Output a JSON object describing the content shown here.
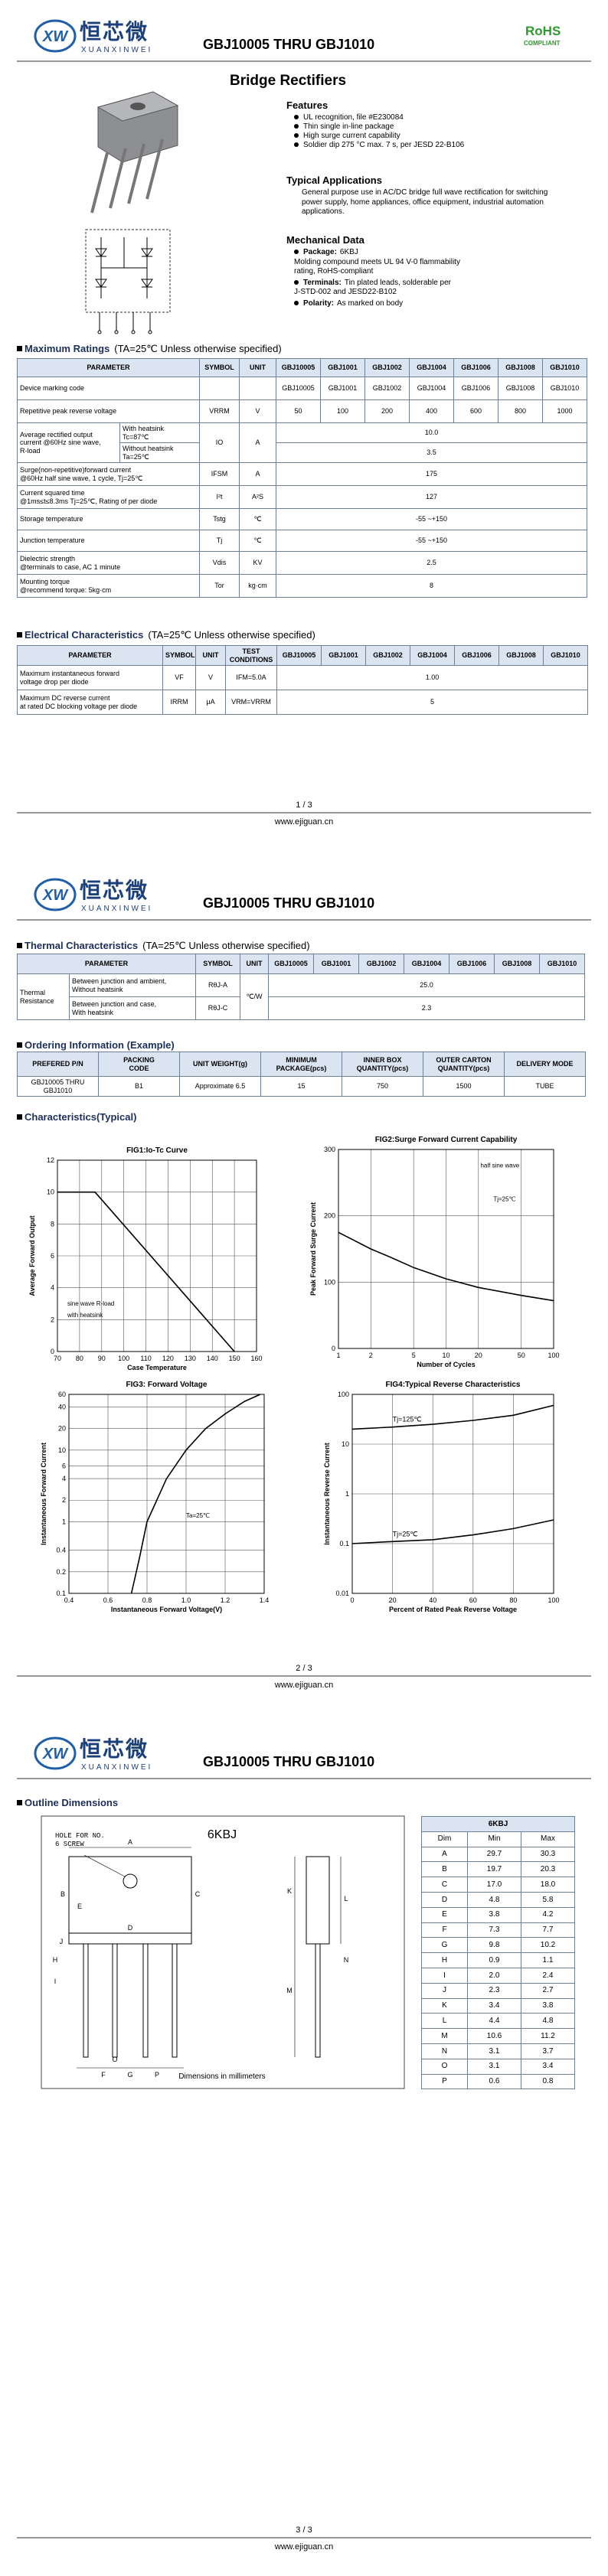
{
  "header": {
    "logo_mark": "XW",
    "brand": "恒芯微",
    "brand_en": "XUANXINWEI",
    "part_range": "GBJ10005 THRU GBJ1010",
    "rohs": "RoHS",
    "compliant": "COMPLIANT"
  },
  "product_title": "Bridge Rectifiers",
  "features": {
    "heading": "Features",
    "items": [
      "UL recognition, file #E230084",
      "Thin single in-line package",
      "High surge current capability",
      "Soldier dip 275 °C max. 7 s, per JESD 22-B106"
    ]
  },
  "applications": {
    "heading": "Typical Applications",
    "text": "General purpose use in AC/DC bridge full wave rectification for switching power supply, home appliances, office equipment, industrial automation applications."
  },
  "mechanical": {
    "heading": "Mechanical Data",
    "items": [
      {
        "label": "Package:",
        "text": "6KBJ\nMolding compound meets UL 94 V-0 flammability\nrating, RoHS-compliant"
      },
      {
        "label": "Terminals:",
        "text": "Tin plated leads, solderable per\nJ-STD-002 and JESD22-B102"
      },
      {
        "label": "Polarity:",
        "text": "As marked on body"
      }
    ]
  },
  "max_ratings": {
    "title": "Maximum Ratings",
    "condition": "(TA=25℃ Unless otherwise specified)",
    "header": [
      "PARAMETER",
      "SYMBOL",
      "UNIT",
      "GBJ10005",
      "GBJ1001",
      "GBJ1002",
      "GBJ1004",
      "GBJ1006",
      "GBJ1008",
      "GBJ1010"
    ],
    "rows": [
      {
        "parameter": "Device marking code",
        "values": [
          "GBJ10005",
          "GBJ1001",
          "GBJ1002",
          "GBJ1004",
          "GBJ1006",
          "GBJ1008",
          "GBJ1010"
        ]
      },
      {
        "parameter": "Repetitive peak reverse voltage",
        "symbol": "VRRM",
        "unit": "V",
        "values": [
          "50",
          "100",
          "200",
          "400",
          "600",
          "800",
          "1000"
        ]
      },
      {
        "parameter": "Average rectified output\ncurrent @60Hz sine wave,\nR-load",
        "conditions": [
          "With heatsink\nTc=87℃",
          "Without heatsink\nTa=25℃"
        ],
        "symbol": "IO",
        "unit": "A",
        "values": [
          "10.0",
          "3.5"
        ]
      },
      {
        "parameter": "Surge(non-repetitive)forward current\n@60Hz half sine wave, 1 cycle, Tj=25℃",
        "symbol": "IFSM",
        "unit": "A",
        "values": [
          "175"
        ]
      },
      {
        "parameter": "Current squared time\n@1ms≤t≤8.3ms Tj=25℃, Rating of per diode",
        "symbol": "I²t",
        "unit": "A²S",
        "values": [
          "127"
        ]
      },
      {
        "parameter": "Storage temperature",
        "symbol": "Tstg",
        "unit": "℃",
        "values": [
          "-55 ~+150"
        ]
      },
      {
        "parameter": "Junction temperature",
        "symbol": "Tj",
        "unit": "℃",
        "values": [
          "-55 ~+150"
        ]
      },
      {
        "parameter": "Dielectric strength\n@terminals to case, AC 1 minute",
        "symbol": "Vdis",
        "unit": "KV",
        "values": [
          "2.5"
        ]
      },
      {
        "parameter": "Mounting torque\n@recommend torque: 5kg·cm",
        "symbol": "Tor",
        "unit": "kg·cm",
        "values": [
          "8"
        ]
      }
    ]
  },
  "electrical": {
    "title": "Electrical Characteristics",
    "condition": "(TA=25℃ Unless otherwise specified)",
    "header": [
      "PARAMETER",
      "SYMBOL",
      "UNIT",
      "TEST CONDITIONS",
      "GBJ10005",
      "GBJ1001",
      "GBJ1002",
      "GBJ1004",
      "GBJ1006",
      "GBJ1008",
      "GBJ1010"
    ],
    "rows": [
      {
        "parameter": "Maximum instantaneous forward\nvoltage drop per diode",
        "symbol": "VF",
        "unit": "V",
        "test": "IFM=5.0A",
        "value": "1.00"
      },
      {
        "parameter": "Maximum DC reverse current\nat rated DC blocking voltage per diode",
        "symbol": "IRRM",
        "unit": "μA",
        "test": "VRM=VRRM",
        "value": "5"
      }
    ]
  },
  "thermal": {
    "title": "Thermal Characteristics",
    "condition": "(TA=25℃ Unless otherwise specified)",
    "header": [
      "PARAMETER",
      "SYMBOL",
      "UNIT",
      "GBJ10005",
      "GBJ1001",
      "GBJ1002",
      "GBJ1004",
      "GBJ1006",
      "GBJ1008",
      "GBJ1010"
    ],
    "parameter": "Thermal\nResistance",
    "unit": "℃/W",
    "rows": [
      {
        "condition": "Between junction and ambient,\nWithout heatsink",
        "symbol": "RθJ-A",
        "value": "25.0"
      },
      {
        "condition": "Between junction and case,\nWith heatsink",
        "symbol": "RθJ-C",
        "value": "2.3"
      }
    ]
  },
  "ordering": {
    "title": "Ordering Information (Example)",
    "header": [
      "PREFERED P/N",
      "PACKING\nCODE",
      "UNIT WEIGHT(g)",
      "MINIMUM\nPACKAGE(pcs)",
      "INNER BOX\nQUANTITY(pcs)",
      "OUTER CARTON\nQUANTITY(pcs)",
      "DELIVERY MODE"
    ],
    "row": [
      "GBJ10005 THRU GBJ1010",
      "B1",
      "Approximate 6.5",
      "15",
      "750",
      "1500",
      "TUBE"
    ]
  },
  "characteristics": {
    "title": "Characteristics(Typical)",
    "charts": [
      {
        "title": "FIG1:Io-Tc Curve",
        "xlabel": "Case Temperature",
        "ylabel": "Average Forward Output",
        "xlim": [
          70,
          160
        ],
        "ylim": [
          0,
          12
        ],
        "xticks": [
          70,
          80,
          90,
          100,
          110,
          120,
          130,
          140,
          150,
          160
        ],
        "yticks": [
          0,
          2,
          4,
          6,
          8,
          10,
          12
        ],
        "series": [
          {
            "color": "#000000",
            "x": [
              70,
              87,
              150
            ],
            "values": [
              10,
              10,
              0
            ]
          }
        ],
        "annotations": [
          "sine wave R-load",
          "with heatsink"
        ]
      },
      {
        "title": "FIG2:Surge Forward Current Capability",
        "xlabel": "Number of Cycles",
        "ylabel": "Peak Forward Surge Current",
        "xlog": true,
        "xlim": [
          1,
          100
        ],
        "ylim": [
          0,
          300
        ],
        "xticks": [
          1,
          2,
          5,
          10,
          20,
          50,
          100
        ],
        "yticks": [
          0,
          100,
          200,
          300
        ],
        "series": [
          {
            "color": "#000000",
            "x": [
              1,
              2,
              3,
              5,
              10,
              20,
              50,
              100
            ],
            "values": [
              175,
              150,
              138,
              122,
              105,
              92,
              80,
              72
            ]
          }
        ],
        "annotations": [
          "half sine wave",
          "Tj=25℃"
        ]
      },
      {
        "title": "FIG3: Forward Voltage",
        "xlabel": "Instantaneous Forward Voltage(V)",
        "ylabel": "Instantaneous Forward Current",
        "ylog": true,
        "xlim": [
          0.4,
          1.4
        ],
        "ylim": [
          0.1,
          60
        ],
        "xticks": [
          0.4,
          0.6,
          0.8,
          {
            "value": 1.0,
            "label": "1.0"
          },
          1.2,
          1.4
        ],
        "yticks": [
          0.1,
          0.2,
          0.4,
          1,
          2,
          4,
          6,
          10,
          20,
          40,
          60
        ],
        "series": [
          {
            "color": "#000000",
            "x": [
              0.72,
              0.76,
              0.8,
              0.9,
              1.0,
              1.1,
              1.2,
              1.3,
              1.38
            ],
            "values": [
              0.1,
              0.3,
              1,
              4,
              10,
              20,
              32,
              48,
              60
            ]
          }
        ],
        "annotations": [
          "Ta=25℃"
        ]
      },
      {
        "title": "FIG4:Typical Reverse Characteristics",
        "xlabel": "Percent of Rated Peak Reverse Voltage",
        "ylabel": "Instantaneous Reverse Current",
        "ylog": true,
        "xlim": [
          0,
          100
        ],
        "ylim": [
          0.01,
          100
        ],
        "xticks": [
          0,
          20,
          40,
          60,
          80,
          100
        ],
        "yticks": [
          0.01,
          0.1,
          1,
          10,
          100
        ],
        "series": [
          {
            "name": "Tj=125℃",
            "color": "#000000",
            "x": [
              0,
              20,
              40,
              60,
              80,
              100
            ],
            "values": [
              20,
              22,
              25,
              30,
              38,
              60
            ]
          },
          {
            "name": "Tj=25℃",
            "color": "#000000",
            "x": [
              0,
              20,
              40,
              60,
              80,
              100
            ],
            "values": [
              0.1,
              0.11,
              0.12,
              0.15,
              0.2,
              0.3
            ]
          }
        ]
      }
    ]
  },
  "outline": {
    "title": "Outline Dimensions",
    "package": "6KBJ",
    "hole_note": "HOLE FOR NO.\n6 SCREW",
    "units_note": "Dimensions in millimeters",
    "table": {
      "title": "6KBJ",
      "header": [
        "Dim",
        "Min",
        "Max"
      ],
      "rows": [
        [
          "A",
          "29.7",
          "30.3"
        ],
        [
          "B",
          "19.7",
          "20.3"
        ],
        [
          "C",
          "17.0",
          "18.0"
        ],
        [
          "D",
          "4.8",
          "5.8"
        ],
        [
          "E",
          "3.8",
          "4.2"
        ],
        [
          "F",
          "7.3",
          "7.7"
        ],
        [
          "G",
          "9.8",
          "10.2"
        ],
        [
          "H",
          "0.9",
          "1.1"
        ],
        [
          "I",
          "2.0",
          "2.4"
        ],
        [
          "J",
          "2.3",
          "2.7"
        ],
        [
          "K",
          "3.4",
          "3.8"
        ],
        [
          "L",
          "4.4",
          "4.8"
        ],
        [
          "M",
          "10.6",
          "11.2"
        ],
        [
          "N",
          "3.1",
          "3.7"
        ],
        [
          "O",
          "3.1",
          "3.4"
        ],
        [
          "P",
          "0.6",
          "0.8"
        ]
      ]
    }
  },
  "pages": [
    "1 / 3",
    "2 / 3",
    "3 / 3"
  ],
  "website": "www.ejiguan.cn"
}
